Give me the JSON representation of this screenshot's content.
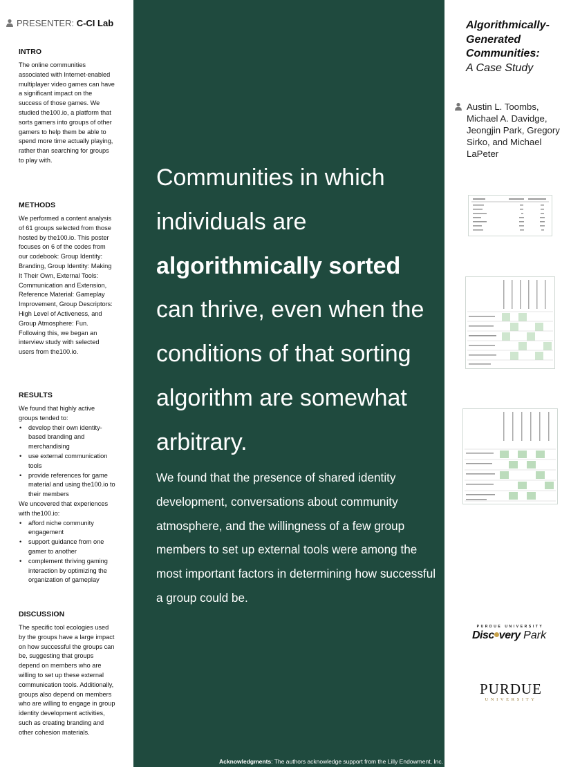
{
  "presenter": {
    "label": "PRESENTER:",
    "name": "C-CI Lab"
  },
  "intro": {
    "heading": "INTRO",
    "body": "The online communities associated with Internet-enabled multiplayer video games can have a significant impact on the success of those games. We studied the100.io, a platform that sorts gamers into groups of other gamers to help them be able to spend more time actually playing, rather than searching for groups to play with."
  },
  "methods": {
    "heading": "METHODS",
    "body": "We performed a content analysis of 61 groups selected from those hosted by the100.io. This poster focuses on 6 of the codes from our codebook: Group Identity: Branding, Group Identity: Making It Their Own, External Tools: Communication and Extension, Reference Material: Gameplay Improvement, Group Descriptors: High Level of Activeness, and Group Atmosphere: Fun. Following this, we began an interview study with selected users from the100.io."
  },
  "results": {
    "heading": "RESULTS",
    "intro1": "We found that highly active groups tended to:",
    "list1": [
      "develop their own identity-based branding and merchandising",
      "use external communication tools",
      "provide references for game material and using the100.io to their members"
    ],
    "intro2": "We uncovered that experiences with the100.io:",
    "list2": [
      "afford niche community engagement",
      "support guidance from one gamer to another",
      "complement thriving gaming interaction by optimizing the organization of gameplay"
    ]
  },
  "discussion": {
    "heading": "DISCUSSION",
    "body": "The specific tool ecologies used by the groups have a large impact on how successful the groups can be, suggesting that groups depend on members who are willing to set up these external communication tools. Additionally, groups also depend on members who are willing to engage in group identity development activities, such as creating branding and other cohesion materials."
  },
  "headline": {
    "part1": "Communities in which individuals are",
    "bold": "algorithmically sorted",
    "part2": "can thrive, even when the conditions of that sorting algorithm are somewhat arbitrary."
  },
  "finding": "We found that the presence of shared identity development, conversations about community atmosphere, and the willingness of a few group members to set up external tools were among the most important factors in determining how successful a group could be.",
  "acknowledgments": {
    "label": "Acknowledgments",
    "text": ": The authors acknowledge support from the Lilly Endowment, Inc."
  },
  "title": {
    "line_bold": "Algorithmically-Generated Communities:",
    "line_italic": "A Case Study"
  },
  "authors": "Austin L. Toombs, Michael A. Davidge, Jeongjin Park, Gregory Sirko, and Michael LaPeter",
  "logos": {
    "discovery_small": "PURDUE UNIVERSITY",
    "discovery_bold_pre": "Disc",
    "discovery_bold_post": "very",
    "discovery_light": " Park",
    "purdue_big": "PURDUE",
    "purdue_small": "UNIVERSITY"
  },
  "colors": {
    "panel": "#1f4a3e",
    "accent_gold": "#c8a24a"
  }
}
